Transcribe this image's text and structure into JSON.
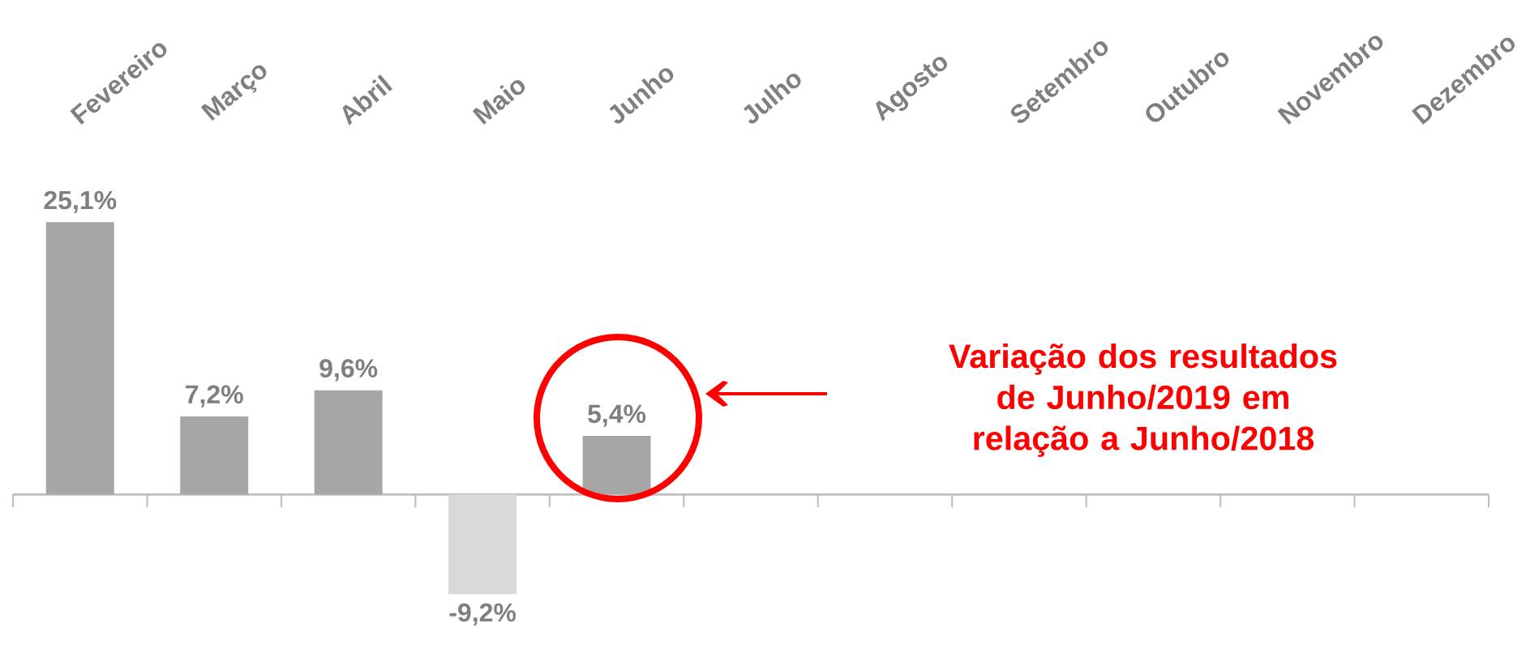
{
  "chart_data": {
    "type": "bar",
    "categories": [
      "Fevereiro",
      "Março",
      "Abril",
      "Maio",
      "Junho",
      "Julho",
      "Agosto",
      "Setembro",
      "Outubro",
      "Novembro",
      "Dezembro"
    ],
    "values": [
      25.1,
      7.2,
      9.6,
      -9.2,
      5.4,
      null,
      null,
      null,
      null,
      null,
      null
    ],
    "colors": [
      "#a6a6a6",
      "#a6a6a6",
      "#a6a6a6",
      "#d9d9d9",
      "#a6a6a6",
      null,
      null,
      null,
      null,
      null,
      null
    ],
    "value_labels": [
      "25,1%",
      "7,2%",
      "9,6%",
      "-9,2%",
      "5,4%",
      null,
      null,
      null,
      null,
      null,
      null
    ],
    "annotations": [
      "Variação dos resultados de Junho/2019 em relação a Junho/2018"
    ]
  }
}
